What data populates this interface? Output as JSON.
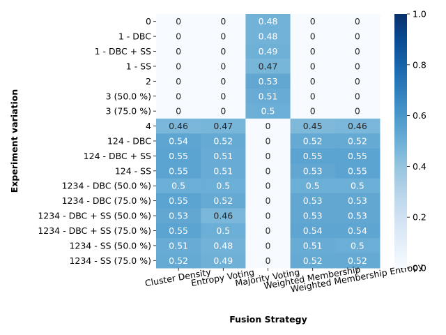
{
  "chart_data": {
    "type": "heatmap",
    "title": "",
    "xlabel": "Fusion Strategy",
    "ylabel": "Experiment variation",
    "columns": [
      "Cluster Density",
      "Entropy Voting",
      "Majority Voting",
      "Weighted Membership",
      "Weighted Membership Entropy"
    ],
    "rows": [
      "0",
      "1 - DBC",
      "1 - DBC + SS",
      "1 - SS",
      "2",
      "3 (50.0 %)",
      "3 (75.0 %)",
      "4",
      "124 - DBC",
      "124 - DBC + SS",
      "124 - SS",
      "1234 - DBC (50.0 %)",
      "1234 - DBC (75.0 %)",
      "1234 - DBC + SS (50.0 %)",
      "1234 - DBC + SS (75.0 %)",
      "1234 - SS (50.0 %)",
      "1234 - SS (75.0 %)"
    ],
    "values": [
      [
        0,
        0,
        0.48,
        0,
        0
      ],
      [
        0,
        0,
        0.48,
        0,
        0
      ],
      [
        0,
        0,
        0.49,
        0,
        0
      ],
      [
        0,
        0,
        0.47,
        0,
        0
      ],
      [
        0,
        0,
        0.53,
        0,
        0
      ],
      [
        0,
        0,
        0.51,
        0,
        0
      ],
      [
        0,
        0,
        0.5,
        0,
        0
      ],
      [
        0.46,
        0.47,
        0,
        0.45,
        0.46
      ],
      [
        0.54,
        0.52,
        0,
        0.52,
        0.52
      ],
      [
        0.55,
        0.51,
        0,
        0.55,
        0.55
      ],
      [
        0.55,
        0.51,
        0,
        0.53,
        0.55
      ],
      [
        0.5,
        0.5,
        0,
        0.5,
        0.5
      ],
      [
        0.55,
        0.52,
        0,
        0.53,
        0.53
      ],
      [
        0.53,
        0.46,
        0,
        0.53,
        0.53
      ],
      [
        0.55,
        0.5,
        0,
        0.54,
        0.54
      ],
      [
        0.51,
        0.48,
        0,
        0.51,
        0.5
      ],
      [
        0.52,
        0.49,
        0,
        0.52,
        0.52
      ]
    ],
    "colorbar": {
      "range": [
        0.0,
        1.0
      ],
      "ticks": [
        "0.0",
        "0.2",
        "0.4",
        "0.6",
        "0.8",
        "1.0"
      ],
      "colormap": "Blues"
    }
  }
}
